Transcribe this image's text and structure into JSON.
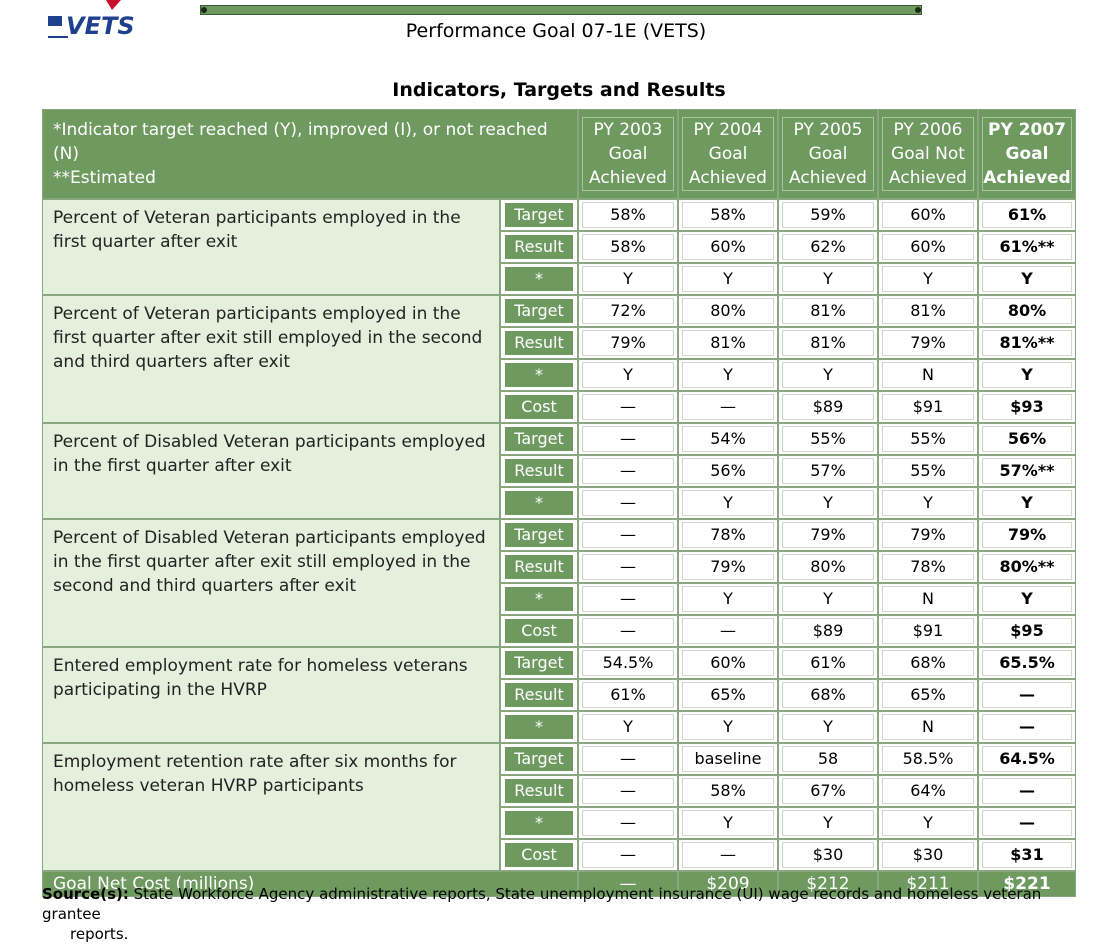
{
  "logo": {
    "text": "VETS"
  },
  "title": "Performance Goal 07-1E (VETS)",
  "subtitle": "Indicators, Targets and Results",
  "header": {
    "note1": "*Indicator target reached (Y), improved (I), or not  reached (N)",
    "note2": "**Estimated",
    "years": [
      {
        "line1": "PY 2003",
        "line2": "Goal",
        "line3": "Achieved"
      },
      {
        "line1": "PY 2004",
        "line2": "Goal",
        "line3": "Achieved"
      },
      {
        "line1": "PY 2005",
        "line2": "Goal",
        "line3": "Achieved"
      },
      {
        "line1": "PY 2006",
        "line2": "Goal Not",
        "line3": "Achieved"
      },
      {
        "line1": "PY 2007",
        "line2": "Goal",
        "line3": "Achieved"
      }
    ]
  },
  "indicators": [
    {
      "text": "Percent of Veteran participants employed in the first quarter after exit",
      "rows": [
        {
          "label": "Target",
          "values": [
            "58%",
            "58%",
            "59%",
            "60%",
            "61%"
          ]
        },
        {
          "label": "Result",
          "values": [
            "58%",
            "60%",
            "62%",
            "60%",
            "61%**"
          ]
        },
        {
          "label": "*",
          "values": [
            "Y",
            "Y",
            "Y",
            "Y",
            "Y"
          ]
        }
      ]
    },
    {
      "text": "Percent of Veteran participants employed in the first quarter after exit still employed in the second and third quarters after exit",
      "rows": [
        {
          "label": "Target",
          "values": [
            "72%",
            "80%",
            "81%",
            "81%",
            "80%"
          ]
        },
        {
          "label": "Result",
          "values": [
            "79%",
            "81%",
            "81%",
            "79%",
            "81%**"
          ]
        },
        {
          "label": "*",
          "values": [
            "Y",
            "Y",
            "Y",
            "N",
            "Y"
          ]
        },
        {
          "label": "Cost",
          "values": [
            "—",
            "—",
            "$89",
            "$91",
            "$93"
          ]
        }
      ]
    },
    {
      "text": "Percent of Disabled Veteran participants employed in the first quarter after exit",
      "rows": [
        {
          "label": "Target",
          "values": [
            "—",
            "54%",
            "55%",
            "55%",
            "56%"
          ]
        },
        {
          "label": "Result",
          "values": [
            "—",
            "56%",
            "57%",
            "55%",
            "57%**"
          ]
        },
        {
          "label": "*",
          "values": [
            "—",
            "Y",
            "Y",
            "Y",
            "Y"
          ]
        }
      ]
    },
    {
      "text": "Percent of Disabled Veteran participants employed in the first quarter after exit still employed in the second and third quarters after exit",
      "rows": [
        {
          "label": "Target",
          "values": [
            "—",
            "78%",
            "79%",
            "79%",
            "79%"
          ]
        },
        {
          "label": "Result",
          "values": [
            "—",
            "79%",
            "80%",
            "78%",
            "80%**"
          ]
        },
        {
          "label": "*",
          "values": [
            "—",
            "Y",
            "Y",
            "N",
            "Y"
          ]
        },
        {
          "label": "Cost",
          "values": [
            "—",
            "—",
            "$89",
            "$91",
            "$95"
          ]
        }
      ]
    },
    {
      "text": "Entered employment rate for homeless veterans participating in the HVRP",
      "rows": [
        {
          "label": "Target",
          "values": [
            "54.5%",
            "60%",
            "61%",
            "68%",
            "65.5%"
          ]
        },
        {
          "label": "Result",
          "values": [
            "61%",
            "65%",
            "68%",
            "65%",
            "—"
          ]
        },
        {
          "label": "*",
          "values": [
            "Y",
            "Y",
            "Y",
            "N",
            "—"
          ]
        }
      ]
    },
    {
      "text": "Employment retention rate after six months for homeless veteran HVRP participants",
      "rows": [
        {
          "label": "Target",
          "values": [
            "—",
            "baseline",
            "58",
            "58.5%",
            "64.5%"
          ]
        },
        {
          "label": "Result",
          "values": [
            "—",
            "58%",
            "67%",
            "64%",
            "—"
          ]
        },
        {
          "label": "*",
          "values": [
            "—",
            "Y",
            "Y",
            "Y",
            "—"
          ]
        },
        {
          "label": "Cost",
          "values": [
            "—",
            "—",
            "$30",
            "$30",
            "$31"
          ]
        }
      ]
    }
  ],
  "total": {
    "label": "Goal Net Cost (millions)",
    "values": [
      "—",
      "$209",
      "$212",
      "$211",
      "$221"
    ]
  },
  "source": {
    "label": "Source(s):",
    "text": " State Workforce Agency administrative reports, State unemployment insurance (UI) wage records and homeless veteran grantee",
    "text2": "reports."
  }
}
